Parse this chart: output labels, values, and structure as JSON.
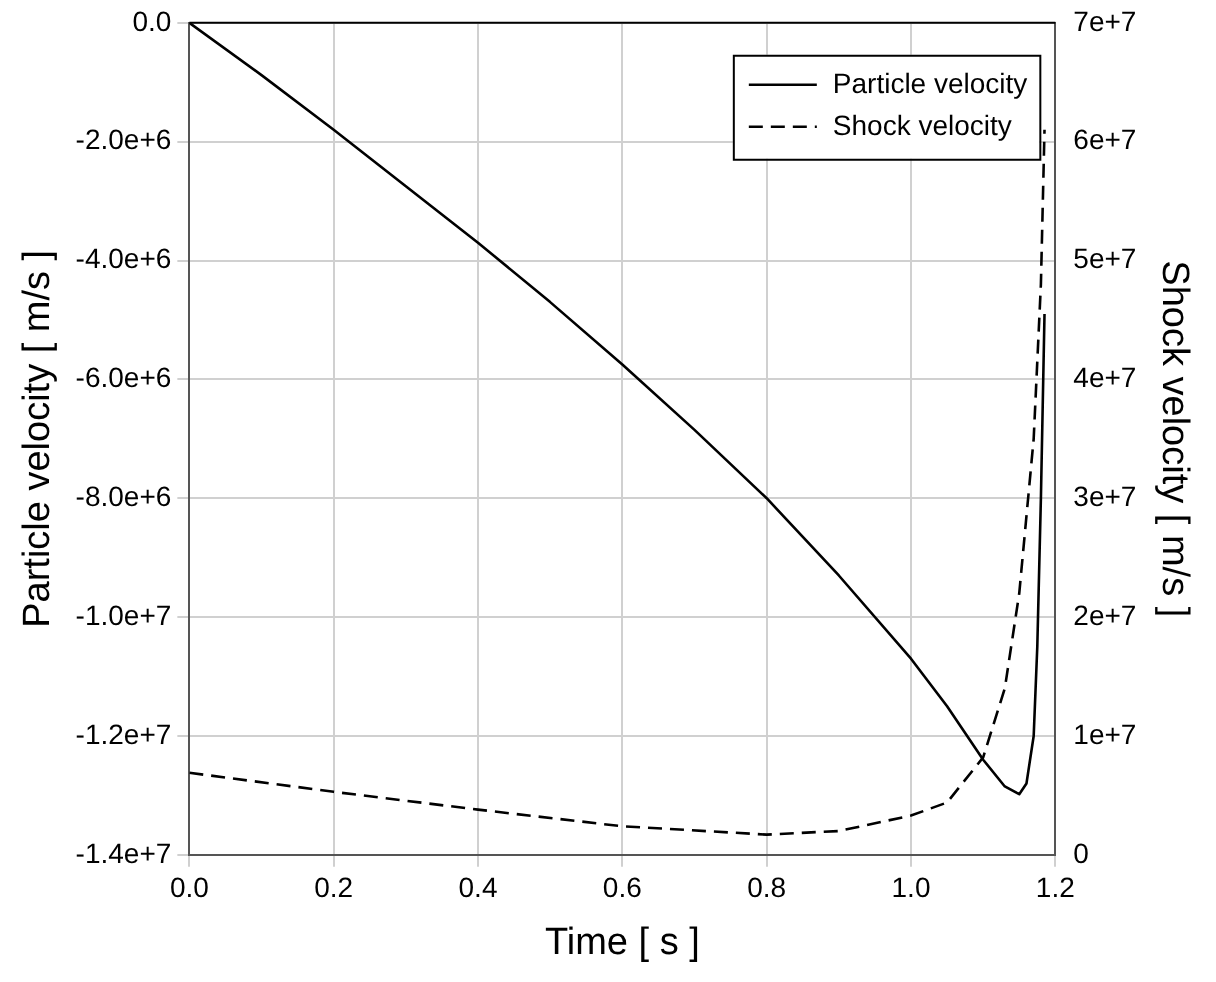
{
  "chart_data": {
    "type": "line",
    "xlabel": "Time [ s ]",
    "ylabel": "Particle velocity [ m/s ]",
    "y2label": "Shock velocity [ m/s ]",
    "xlim": [
      0,
      1.2
    ],
    "xticks": [
      {
        "value": 0,
        "label": "0.0"
      },
      {
        "value": 0.2,
        "label": "0.2"
      },
      {
        "value": 0.4,
        "label": "0.4"
      },
      {
        "value": 0.6,
        "label": "0.6"
      },
      {
        "value": 0.8,
        "label": "0.8"
      },
      {
        "value": 1,
        "label": "1.0"
      },
      {
        "value": 1.2,
        "label": "1.2"
      }
    ],
    "ylim": [
      -14000000,
      0
    ],
    "yticks": [
      {
        "value": 0,
        "label": "0.0"
      },
      {
        "value": -2000000,
        "label": "-2.0e+6"
      },
      {
        "value": -4000000,
        "label": "-4.0e+6"
      },
      {
        "value": -6000000,
        "label": "-6.0e+6"
      },
      {
        "value": -8000000,
        "label": "-8.0e+6"
      },
      {
        "value": -10000000,
        "label": "-1.0e+7"
      },
      {
        "value": -12000000,
        "label": "-1.2e+7"
      },
      {
        "value": -14000000,
        "label": "-1.4e+7"
      }
    ],
    "y2lim": [
      0,
      70000000
    ],
    "y2ticks": [
      0,
      {
        "value": 10000000,
        "label": "1e+7"
      },
      {
        "value": 20000000,
        "label": "2e+7"
      },
      {
        "value": 30000000,
        "label": "3e+7"
      },
      {
        "value": 40000000,
        "label": "4e+7"
      },
      {
        "value": 50000000,
        "label": "5e+7"
      },
      {
        "value": 60000000,
        "label": "6e+7"
      },
      {
        "value": 70000000,
        "label": "7e+7"
      }
    ],
    "grid": true,
    "legend": "top right",
    "marker": "none",
    "series": [
      {
        "name": "Particle velocity",
        "color": "#000000",
        "line_style": "solid",
        "x": [
          0,
          0.1,
          0.2,
          0.3,
          0.4,
          0.5,
          0.6,
          0.7,
          0.8,
          0.9,
          1.0,
          1.05,
          1.1,
          1.13,
          1.15,
          1.16,
          1.17,
          1.175,
          1.18,
          1.185
        ],
        "values": [
          0,
          -880000,
          -1800000,
          -2750000,
          -3700000,
          -4700000,
          -5750000,
          -6850000,
          -8000000,
          -9300000,
          -10700000,
          -11500000,
          -12400000,
          -12850000,
          -12980000,
          -12800000,
          -12000000,
          -10500000,
          -8000000,
          -4900000
        ]
      },
      {
        "name": "Shock velocity",
        "color": "#000000",
        "line_style": "dashed",
        "axis": "y2",
        "x": [
          0,
          0.2,
          0.4,
          0.6,
          0.8,
          0.9,
          1.0,
          1.05,
          1.1,
          1.13,
          1.15,
          1.17,
          1.18,
          1.185
        ],
        "values": [
          6900000,
          5300000,
          3800000,
          2400000,
          1700000,
          2000000,
          3300000,
          4400000,
          8200000,
          14000000,
          22000000,
          35000000,
          48000000,
          61000000
        ]
      }
    ]
  }
}
